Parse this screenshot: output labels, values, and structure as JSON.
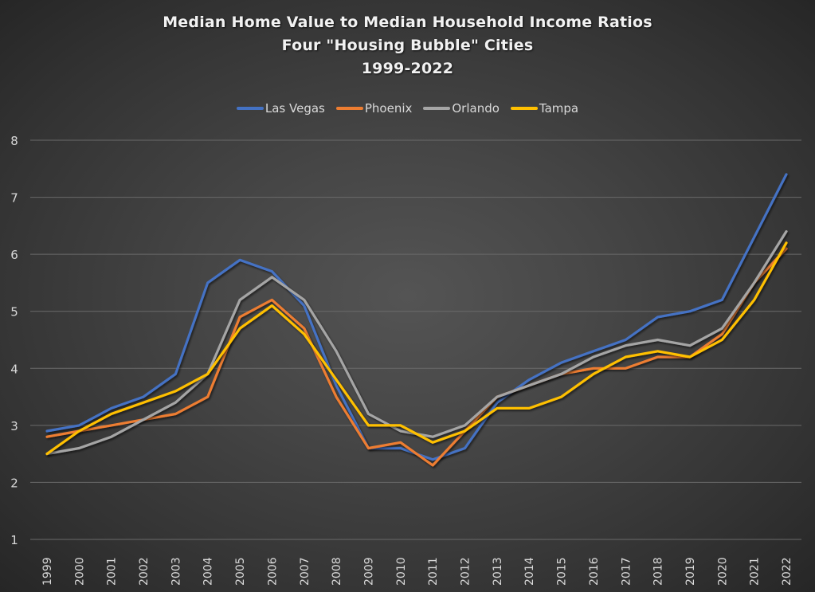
{
  "chart_data": {
    "type": "line",
    "title": [
      "Median Home Value to Median Household Income Ratios",
      "Four \"Housing Bubble\" Cities",
      "1999-2022"
    ],
    "xlabel": "",
    "ylabel": "",
    "ylim": [
      1,
      8
    ],
    "yticks": [
      "1",
      "2",
      "3",
      "4",
      "5",
      "6",
      "7",
      "8"
    ],
    "grid": true,
    "legend_position": "top",
    "categories": [
      "1999",
      "2000",
      "2001",
      "2002",
      "2003",
      "2004",
      "2005",
      "2006",
      "2007",
      "2008",
      "2009",
      "2010",
      "2011",
      "2012",
      "2013",
      "2014",
      "2015",
      "2016",
      "2017",
      "2018",
      "2019",
      "2020",
      "2021",
      "2022"
    ],
    "series": [
      {
        "name": "Las Vegas",
        "color": "#4472C4",
        "values": [
          2.9,
          3.0,
          3.3,
          3.5,
          3.9,
          5.5,
          5.9,
          5.7,
          5.1,
          3.7,
          2.6,
          2.6,
          2.4,
          2.6,
          3.4,
          3.8,
          4.1,
          4.3,
          4.5,
          4.9,
          5.0,
          5.2,
          6.3,
          7.4
        ]
      },
      {
        "name": "Phoenix",
        "color": "#ED7D31",
        "values": [
          2.8,
          2.9,
          3.0,
          3.1,
          3.2,
          3.5,
          4.9,
          5.2,
          4.7,
          3.5,
          2.6,
          2.7,
          2.3,
          2.9,
          3.5,
          3.7,
          3.9,
          4.0,
          4.0,
          4.2,
          4.2,
          4.6,
          5.5,
          6.1
        ]
      },
      {
        "name": "Orlando",
        "color": "#A5A5A5",
        "values": [
          2.5,
          2.6,
          2.8,
          3.1,
          3.4,
          3.9,
          5.2,
          5.6,
          5.2,
          4.3,
          3.2,
          2.9,
          2.8,
          3.0,
          3.5,
          3.7,
          3.9,
          4.2,
          4.4,
          4.5,
          4.4,
          4.7,
          5.5,
          6.4
        ]
      },
      {
        "name": "Tampa",
        "color": "#FFC000",
        "values": [
          2.5,
          2.9,
          3.2,
          3.4,
          3.6,
          3.9,
          4.7,
          5.1,
          4.6,
          3.8,
          3.0,
          3.0,
          2.7,
          2.9,
          3.3,
          3.3,
          3.5,
          3.9,
          4.2,
          4.3,
          4.2,
          4.5,
          5.2,
          6.2
        ]
      }
    ]
  }
}
